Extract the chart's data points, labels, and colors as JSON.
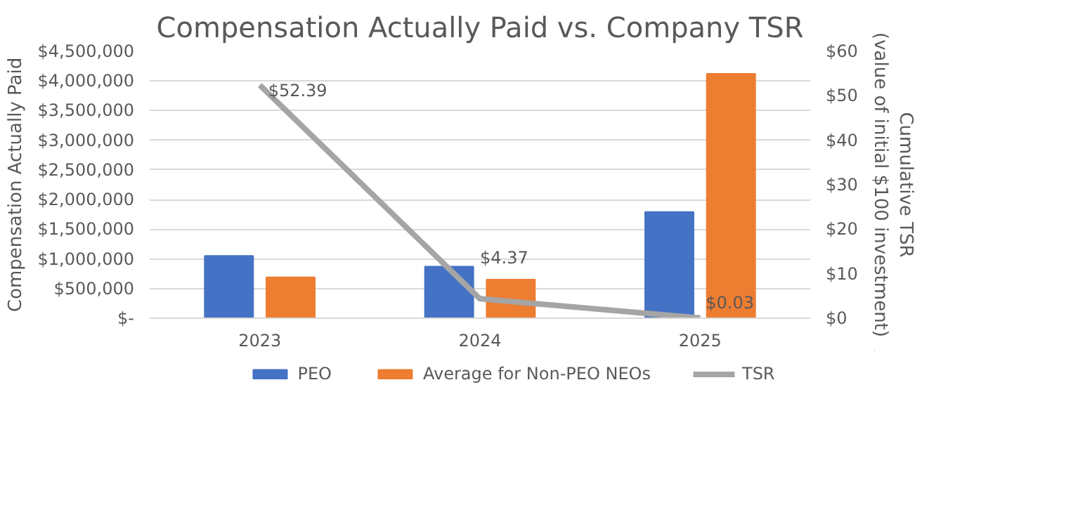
{
  "chart_data": {
    "type": "bar",
    "title": "Compensation Actually Paid vs. Company TSR",
    "categories": [
      "2023",
      "2024",
      "2025"
    ],
    "ylabel": "Compensation Actually Paid",
    "y2label": "Cumulative TSR\n(value of initial $100 investment)",
    "series": [
      {
        "name": "PEO",
        "color": "#4472c4",
        "values": [
          1050000,
          870000,
          1790000
        ]
      },
      {
        "name": "Average for Non-PEO NEOs",
        "color": "#ed7d31",
        "values": [
          690000,
          650000,
          4120000
        ]
      },
      {
        "name": "TSR",
        "type": "line",
        "axis": "y2",
        "color": "#a5a5a5",
        "values": [
          52.39,
          4.37,
          0.03
        ],
        "value_labels": [
          "$52.39",
          "$4.37",
          "$0.03"
        ]
      }
    ],
    "ylim": [
      0,
      4500000
    ],
    "yticks": [
      {
        "value": 0,
        "label": "$-"
      },
      {
        "value": 500000,
        "label": "$500,000"
      },
      {
        "value": 1000000,
        "label": "$1,000,000"
      },
      {
        "value": 1500000,
        "label": "$1,500,000"
      },
      {
        "value": 2000000,
        "label": "$2,000,000"
      },
      {
        "value": 2500000,
        "label": "$2,500,000"
      },
      {
        "value": 3000000,
        "label": "$3,000,000"
      },
      {
        "value": 3500000,
        "label": "$3,500,000"
      },
      {
        "value": 4000000,
        "label": "$4,000,000"
      },
      {
        "value": 4500000,
        "label": "$4,500,000"
      }
    ],
    "y2lim": [
      0,
      60
    ],
    "y2ticks": [
      {
        "value": 0,
        "label": "$0"
      },
      {
        "value": 10,
        "label": "$10"
      },
      {
        "value": 20,
        "label": "$20"
      },
      {
        "value": 30,
        "label": "$30"
      },
      {
        "value": 40,
        "label": "$40"
      },
      {
        "value": 50,
        "label": "$50"
      },
      {
        "value": 60,
        "label": "$60"
      }
    ],
    "grid": "y",
    "legend": "bottom"
  }
}
